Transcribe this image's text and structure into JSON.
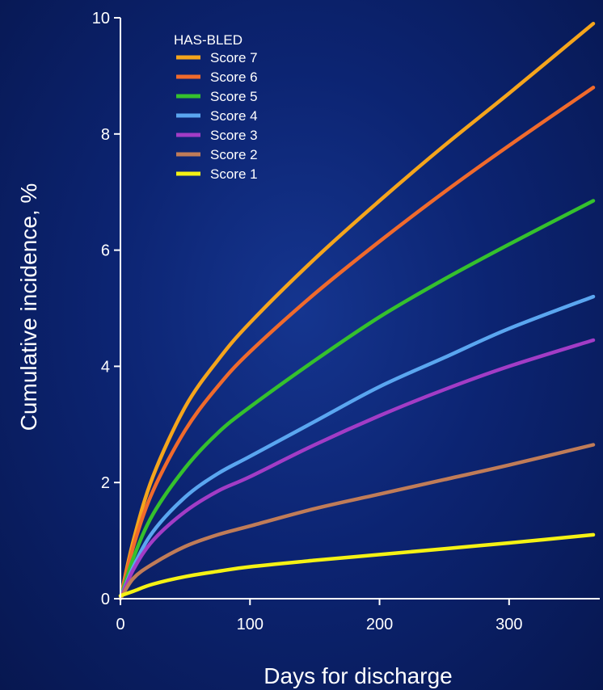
{
  "chart_data": {
    "type": "line",
    "title": "",
    "xlabel": "Days for discharge",
    "ylabel": "Cumulative incidence, %",
    "xlim": [
      0,
      370
    ],
    "ylim": [
      0,
      10
    ],
    "x_ticks": [
      0,
      100,
      200,
      300
    ],
    "y_ticks": [
      0,
      2,
      4,
      6,
      8,
      10
    ],
    "grid": false,
    "legend": {
      "title": "HAS-BLED",
      "position": "top-left"
    },
    "x": [
      0,
      10,
      25,
      50,
      75,
      100,
      150,
      200,
      250,
      300,
      365
    ],
    "series": [
      {
        "name": "Score 7",
        "color": "#f5a51c",
        "values": [
          0.0,
          1.0,
          2.1,
          3.3,
          4.1,
          4.75,
          5.85,
          6.85,
          7.8,
          8.7,
          9.9
        ]
      },
      {
        "name": "Score 6",
        "color": "#f06a2c",
        "values": [
          0.0,
          0.9,
          1.85,
          2.9,
          3.65,
          4.25,
          5.25,
          6.15,
          7.0,
          7.8,
          8.8
        ]
      },
      {
        "name": "Score 5",
        "color": "#35c12d",
        "values": [
          0.0,
          0.7,
          1.45,
          2.25,
          2.85,
          3.3,
          4.1,
          4.85,
          5.5,
          6.1,
          6.85
        ]
      },
      {
        "name": "Score 4",
        "color": "#5aa6f0",
        "values": [
          0.0,
          0.55,
          1.15,
          1.75,
          2.15,
          2.45,
          3.05,
          3.65,
          4.15,
          4.65,
          5.2
        ]
      },
      {
        "name": "Score 3",
        "color": "#a23cc6",
        "values": [
          0.0,
          0.5,
          1.0,
          1.5,
          1.85,
          2.1,
          2.65,
          3.15,
          3.6,
          4.0,
          4.45
        ]
      },
      {
        "name": "Score 2",
        "color": "#c07c58",
        "values": [
          0.0,
          0.35,
          0.6,
          0.9,
          1.1,
          1.25,
          1.55,
          1.8,
          2.05,
          2.3,
          2.65
        ]
      },
      {
        "name": "Score 1",
        "color": "#f5f214",
        "values": [
          0.05,
          0.13,
          0.25,
          0.38,
          0.47,
          0.55,
          0.66,
          0.76,
          0.86,
          0.96,
          1.1
        ]
      }
    ]
  }
}
